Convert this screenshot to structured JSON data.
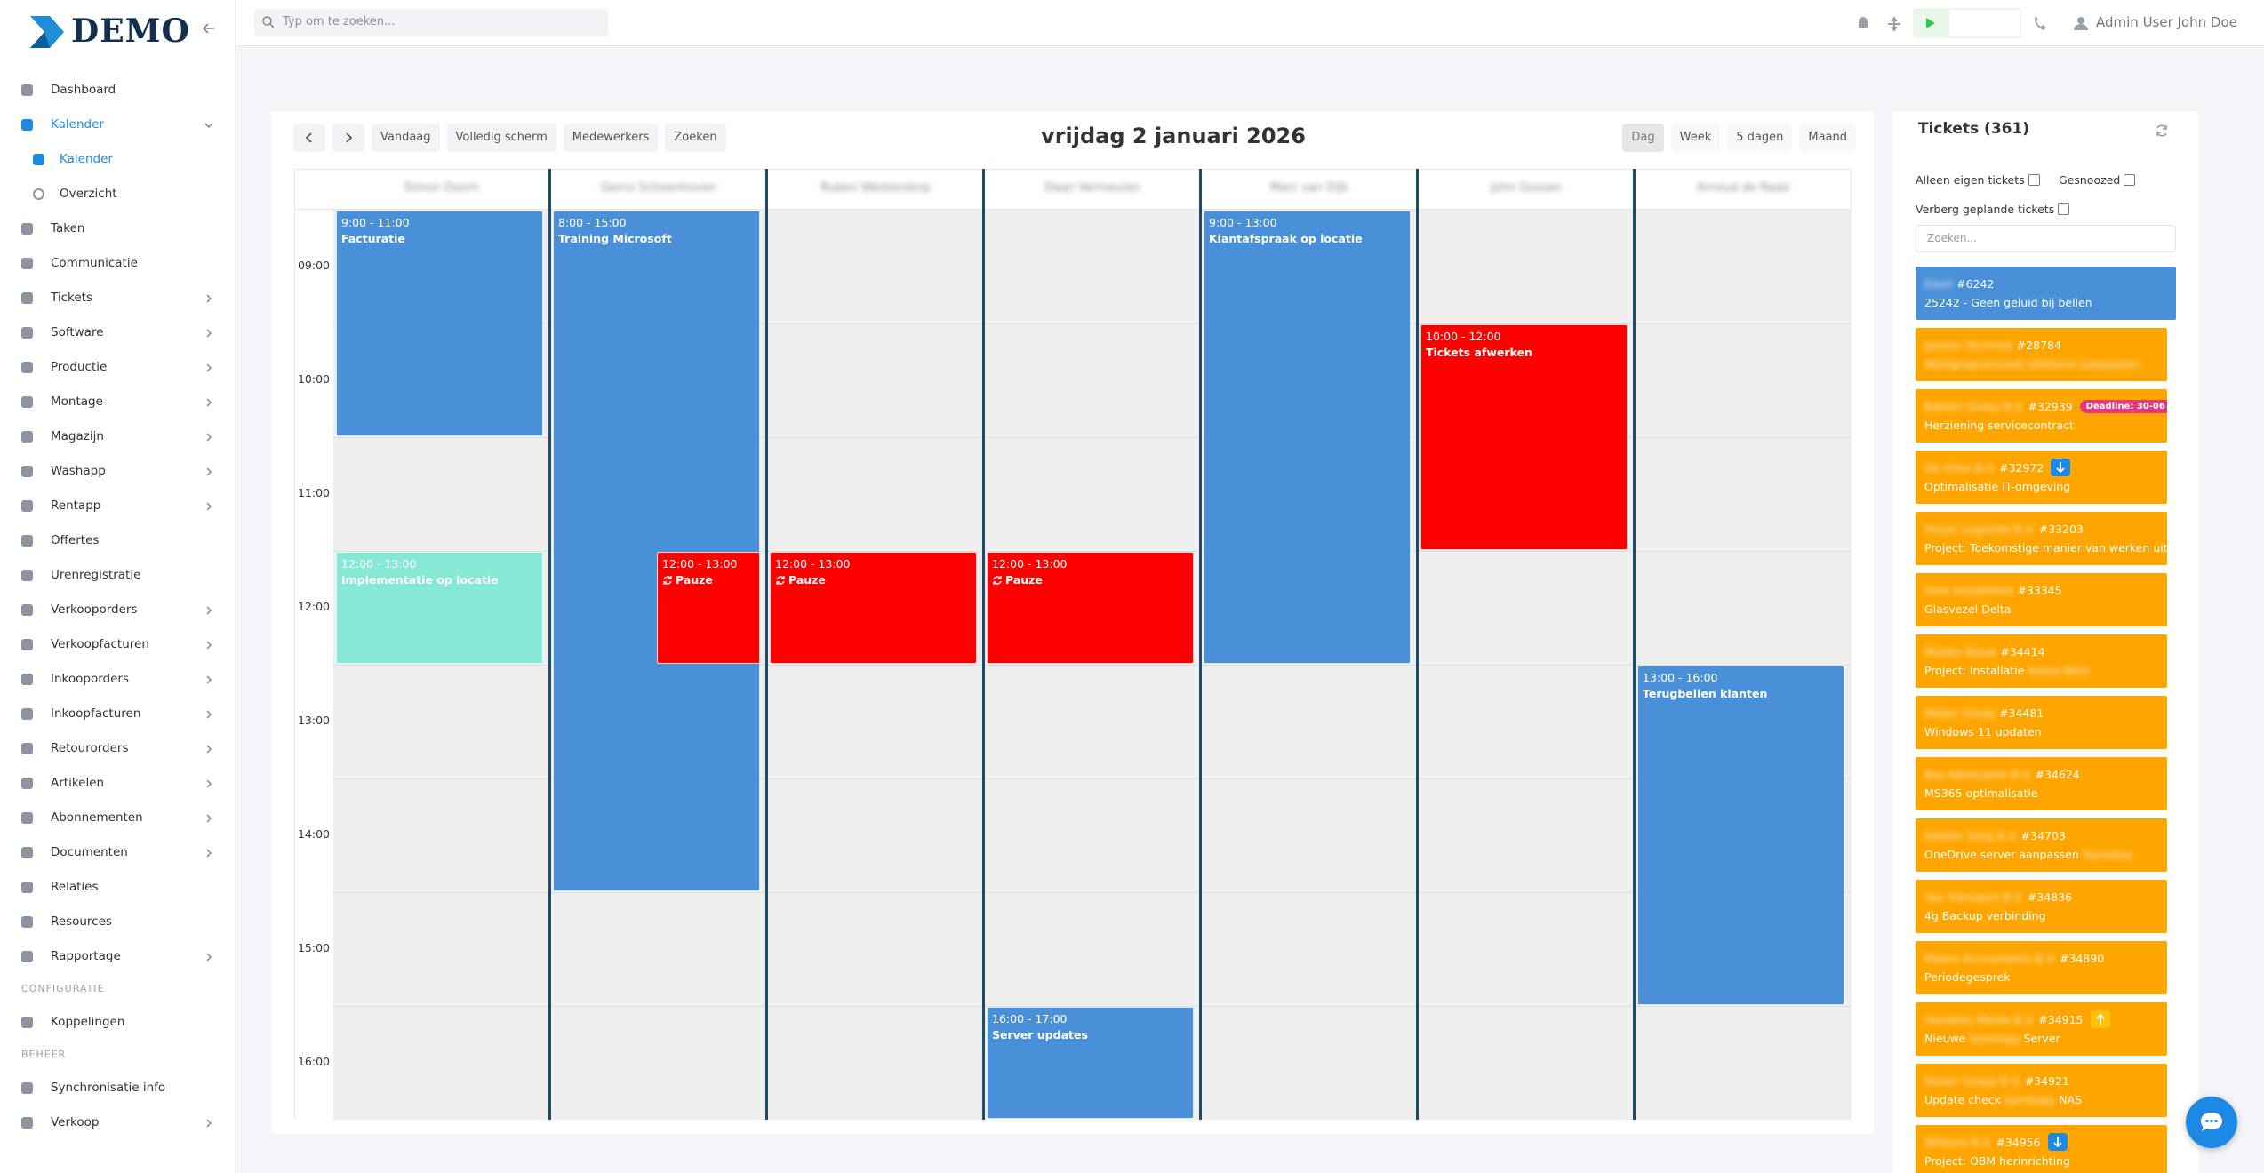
{
  "sidebar": {
    "logo": "DEMO",
    "menu": [
      {
        "label": "Dashboard"
      },
      {
        "label": "Kalender",
        "submenu": true,
        "expanded": true,
        "active": true
      },
      {
        "label": "Kalender",
        "sub": true,
        "active": true
      },
      {
        "label": "Overzicht",
        "sub": true
      },
      {
        "label": "Taken"
      },
      {
        "label": "Communicatie"
      },
      {
        "label": "Tickets",
        "submenu": true
      },
      {
        "label": "Software",
        "submenu": true
      },
      {
        "label": "Productie",
        "submenu": true
      },
      {
        "label": "Montage",
        "submenu": true
      },
      {
        "label": "Magazijn",
        "submenu": true
      },
      {
        "label": "Washapp",
        "submenu": true
      },
      {
        "label": "Rentapp",
        "submenu": true
      },
      {
        "label": "Offertes"
      },
      {
        "label": "Urenregistratie"
      },
      {
        "label": "Verkooporders",
        "submenu": true
      },
      {
        "label": "Verkoopfacturen",
        "submenu": true
      },
      {
        "label": "Inkooporders",
        "submenu": true
      },
      {
        "label": "Inkoopfacturen",
        "submenu": true
      },
      {
        "label": "Retourorders",
        "submenu": true
      },
      {
        "label": "Artikelen",
        "submenu": true
      },
      {
        "label": "Abonnementen",
        "submenu": true
      },
      {
        "label": "Documenten",
        "submenu": true
      },
      {
        "label": "Relaties"
      },
      {
        "label": "Resources"
      },
      {
        "label": "Rapportage",
        "submenu": true
      },
      {
        "section": "CONFIGURATIE"
      },
      {
        "label": "Koppelingen"
      },
      {
        "section": "BEHEER"
      },
      {
        "label": "Synchronisatie info"
      },
      {
        "label": "Verkoop",
        "submenu": true
      }
    ]
  },
  "topbar": {
    "search_placeholder": "Typ om te zoeken...",
    "user": "Admin User John Doe"
  },
  "calendar": {
    "nav": [
      "Vandaag",
      "Volledig scherm",
      "Medewerkers",
      "Zoeken"
    ],
    "title": "vrijdag 2 januari 2026",
    "views": [
      "Dag",
      "Week",
      "5 dagen",
      "Maand"
    ],
    "active_view": 0,
    "hours": [
      "09:00",
      "10:00",
      "11:00",
      "12:00",
      "13:00",
      "14:00",
      "15:00",
      "16:00"
    ],
    "employees": [
      {
        "name": "Simon Doorn",
        "events": [
          {
            "time": "9:00 - 11:00",
            "title": "Facturatie",
            "color": "#4a90d9"
          },
          {
            "time": "12:00 - 13:00",
            "title": "Implementatie op locatie",
            "color": "#86e8d6"
          }
        ]
      },
      {
        "name": "Gerco Schoenhoven",
        "events": [
          {
            "time": "8:00 - 15:00",
            "title": "Training Microsoft",
            "color": "#4a90d9"
          },
          {
            "time": "12:00 - 13:00",
            "title": "Pauze",
            "color": "#ff0000",
            "recurring": true
          }
        ]
      },
      {
        "name": "Ruben Westendorp",
        "events": [
          {
            "time": "12:00 - 13:00",
            "title": "Pauze",
            "color": "#ff0000",
            "recurring": true
          }
        ]
      },
      {
        "name": "Daan Vermeulen",
        "events": [
          {
            "time": "12:00 - 13:00",
            "title": "Pauze",
            "color": "#ff0000",
            "recurring": true
          },
          {
            "time": "16:00 - 17:00",
            "title": "Server updates",
            "color": "#4a90d9"
          }
        ]
      },
      {
        "name": "Marc van Dijk",
        "events": [
          {
            "time": "9:00 - 13:00",
            "title": "Klantafspraak op locatie",
            "color": "#4a90d9"
          }
        ]
      },
      {
        "name": "John Gossen",
        "events": [
          {
            "time": "10:00 - 12:00",
            "title": "Tickets afwerken",
            "color": "#ff0000"
          }
        ]
      },
      {
        "name": "Arnoud de Raad",
        "events": [
          {
            "time": "13:00 - 16:00",
            "title": "Terugbellen klanten",
            "color": "#4a90d9"
          }
        ]
      }
    ]
  },
  "tickets": {
    "title": "Tickets (361)",
    "filters": [
      "Alleen eigen tickets",
      "Gesnoozed",
      "Verberg geplande tickets"
    ],
    "search_placeholder": "Zoeken...",
    "items": [
      {
        "client": "Klant",
        "number": "#6242",
        "subject": [
          {
            "text": "25242 - Geen geluid bij bellen"
          }
        ],
        "color": "#4a90d9"
      },
      {
        "client": "Jansen Techniek",
        "number": "#28784",
        "subject": [
          {
            "text": "Wijzigingsverzoek telefonie aanpassen",
            "blur": true
          }
        ],
        "color": "#ffa500"
      },
      {
        "client": "Bakker Groep B.V.",
        "number": "#32939",
        "subject": [
          {
            "text": "Herziening servicecontract"
          }
        ],
        "color": "#ffa500",
        "badge": {
          "type": "deadline",
          "text": "Deadline: 30-06"
        }
      },
      {
        "client": "De Vries B.V.",
        "number": "#32972",
        "subject": [
          {
            "text": "Optimalisatie IT-omgeving"
          }
        ],
        "color": "#ffa500",
        "badge": {
          "type": "down"
        }
      },
      {
        "client": "Visser Logistiek B.V.",
        "number": "#33203",
        "subject": [
          {
            "text": "Project: Toekomstige manier van werken uitz"
          }
        ],
        "color": "#ffa500"
      },
      {
        "client": "Smit Installaties",
        "number": "#33345",
        "subject": [
          {
            "text": "Glasvezel Delta"
          }
        ],
        "color": "#ffa500"
      },
      {
        "client": "Mulder Bouw",
        "number": "#34414",
        "subject": [
          {
            "text": "Project: Installatie "
          },
          {
            "text": "Kassa Bedr",
            "blur": true
          }
        ],
        "color": "#ffa500"
      },
      {
        "client": "Meijer Groep",
        "number": "#34481",
        "subject": [
          {
            "text": "Windows 11 updaten"
          }
        ],
        "color": "#ffa500"
      },
      {
        "client": "Bos Advocaten B.V.",
        "number": "#34624",
        "subject": [
          {
            "text": "MS365 optimalisatie"
          }
        ],
        "color": "#ffa500"
      },
      {
        "client": "Dekker Zorg B.V.",
        "number": "#34703",
        "subject": [
          {
            "text": "OneDrive server aanpassen "
          },
          {
            "text": "Synowey",
            "blur": true
          }
        ],
        "color": "#ffa500"
      },
      {
        "client": "Vos Transport B.V.",
        "number": "#34836",
        "subject": [
          {
            "text": "4g Backup verbinding"
          }
        ],
        "color": "#ffa500"
      },
      {
        "client": "Peters Accountants B.V.",
        "number": "#34890",
        "subject": [
          {
            "text": "Periodegesprek"
          }
        ],
        "color": "#ffa500"
      },
      {
        "client": "Hendriks Media B.V.",
        "number": "#34915",
        "subject": [
          {
            "text": "Nieuwe "
          },
          {
            "text": "Synology",
            "blur": true
          },
          {
            "text": " Server"
          }
        ],
        "color": "#ffa500",
        "badge": {
          "type": "up"
        }
      },
      {
        "client": "Koster Groep B.V.",
        "number": "#34921",
        "subject": [
          {
            "text": "Update check "
          },
          {
            "text": "Synology",
            "blur": true
          },
          {
            "text": " NAS"
          }
        ],
        "color": "#ffa500"
      },
      {
        "client": "Willems B.V.",
        "number": "#34956",
        "subject": [
          {
            "text": "Project: OBM herinrichting"
          }
        ],
        "color": "#ffa500",
        "badge": {
          "type": "down"
        }
      }
    ]
  }
}
